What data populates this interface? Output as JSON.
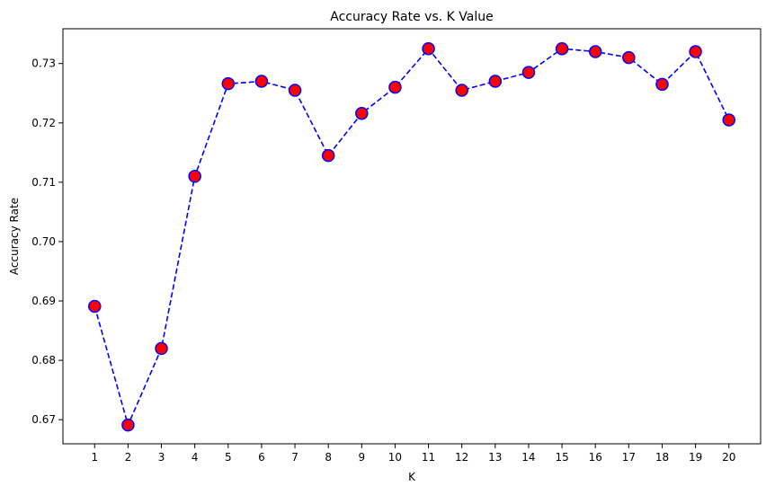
{
  "chart_data": {
    "type": "line",
    "title": "Accuracy Rate vs. K Value",
    "xlabel": "K",
    "ylabel": "Accuracy Rate",
    "x": [
      1,
      2,
      3,
      4,
      5,
      6,
      7,
      8,
      9,
      10,
      11,
      12,
      13,
      14,
      15,
      16,
      17,
      18,
      19,
      20
    ],
    "series": [
      {
        "name": "",
        "values": [
          0.6891,
          0.6691,
          0.682,
          0.711,
          0.7266,
          0.727,
          0.7255,
          0.7145,
          0.7216,
          0.726,
          0.7325,
          0.7255,
          0.727,
          0.7285,
          0.7325,
          0.732,
          0.731,
          0.7265,
          0.732,
          0.7205
        ],
        "line_color": "#0000ff",
        "line_style": "dashed",
        "marker": "circle",
        "marker_face_color": "#ff0000",
        "marker_edge_color": "#0000ff"
      }
    ],
    "xticks": [
      "1",
      "2",
      "3",
      "4",
      "5",
      "6",
      "7",
      "8",
      "9",
      "10",
      "11",
      "12",
      "13",
      "14",
      "15",
      "16",
      "17",
      "18",
      "19",
      "20"
    ],
    "yticks": [
      "0.67",
      "0.68",
      "0.69",
      "0.70",
      "0.71",
      "0.72",
      "0.73"
    ],
    "ytick_values": [
      0.67,
      0.68,
      0.69,
      0.7,
      0.71,
      0.72,
      0.73
    ],
    "xlim": [
      0.05,
      20.95
    ],
    "ylim": [
      0.66594,
      0.73586
    ],
    "grid": false,
    "legend": "none"
  }
}
